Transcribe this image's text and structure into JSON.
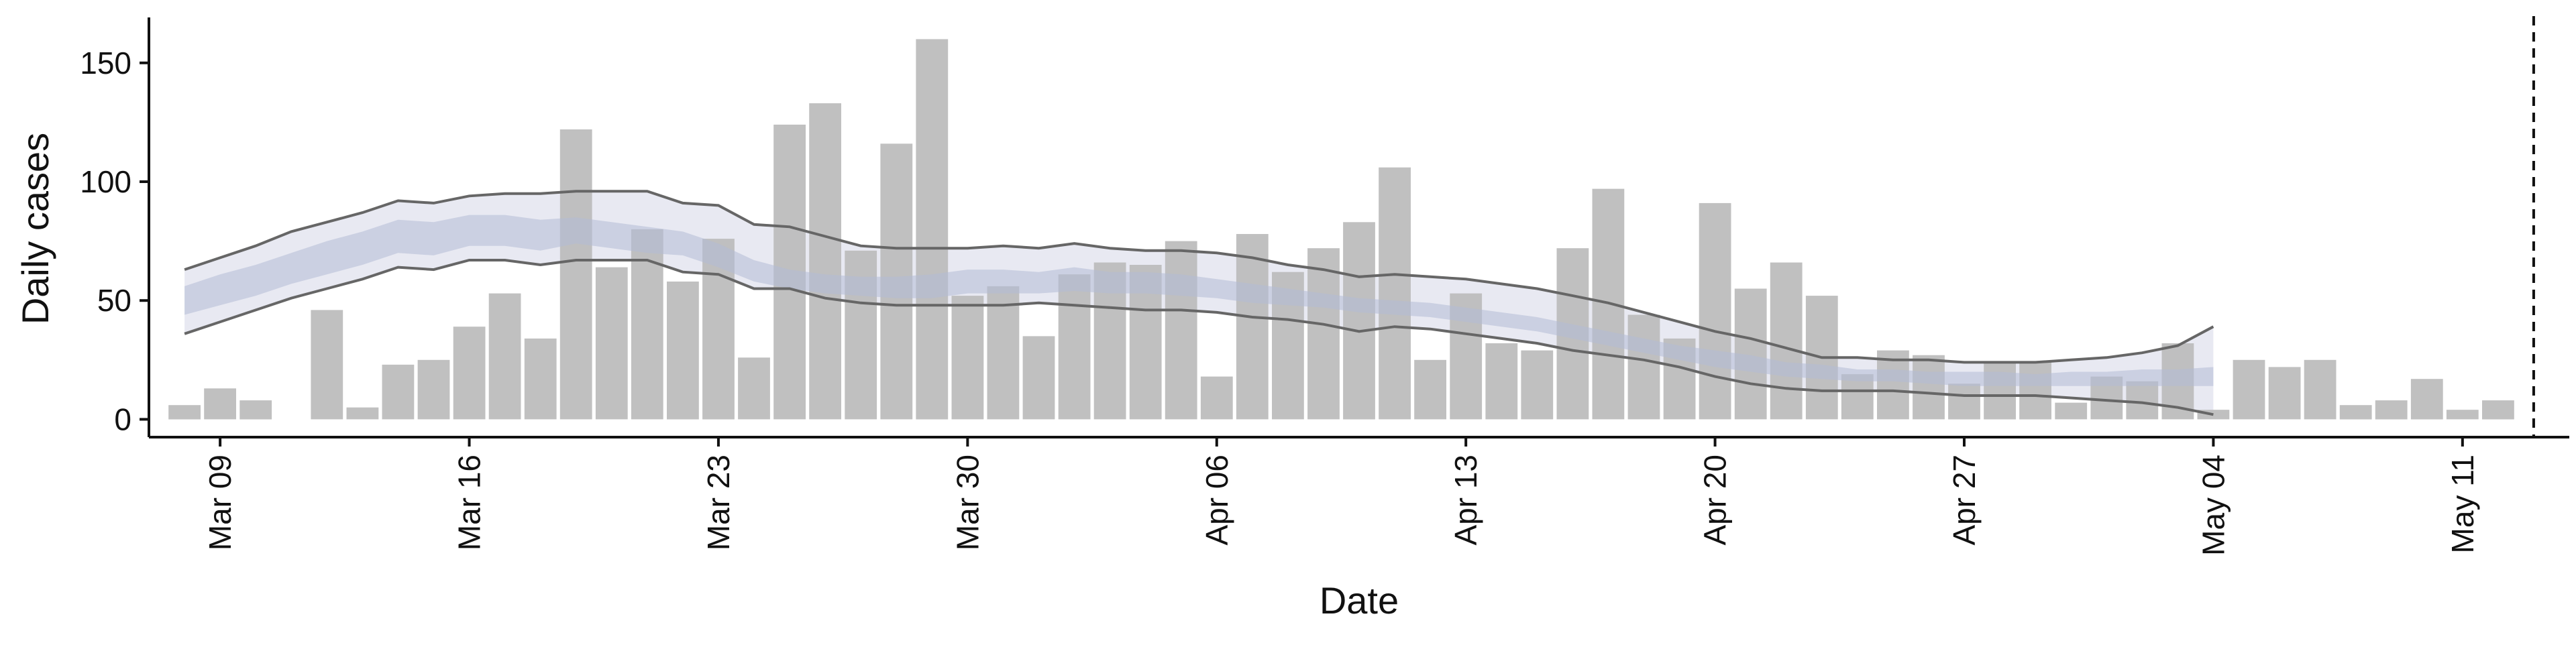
{
  "chart_data": {
    "type": "bar",
    "xlabel": "Date",
    "ylabel": "Daily cases",
    "ylim": [
      -7.5,
      168
    ],
    "y_ticks": [
      0,
      50,
      100,
      150
    ],
    "x_start": "2020-03-07",
    "x_end": "2020-05-14",
    "x_ticks": [
      {
        "date": "2020-03-09",
        "label": "Mar 09"
      },
      {
        "date": "2020-03-16",
        "label": "Mar 16"
      },
      {
        "date": "2020-03-23",
        "label": "Mar 23"
      },
      {
        "date": "2020-03-30",
        "label": "Mar 30"
      },
      {
        "date": "2020-04-06",
        "label": "Apr 06"
      },
      {
        "date": "2020-04-13",
        "label": "Apr 13"
      },
      {
        "date": "2020-04-20",
        "label": "Apr 20"
      },
      {
        "date": "2020-04-27",
        "label": "Apr 27"
      },
      {
        "date": "2020-05-04",
        "label": "May 04"
      },
      {
        "date": "2020-05-11",
        "label": "May 11"
      }
    ],
    "bar_dates": [
      "2020-03-08",
      "2020-03-09",
      "2020-03-10",
      "2020-03-11",
      "2020-03-12",
      "2020-03-13",
      "2020-03-14",
      "2020-03-15",
      "2020-03-16",
      "2020-03-17",
      "2020-03-18",
      "2020-03-19",
      "2020-03-20",
      "2020-03-21",
      "2020-03-22",
      "2020-03-23",
      "2020-03-24",
      "2020-03-25",
      "2020-03-26",
      "2020-03-27",
      "2020-03-28",
      "2020-03-29",
      "2020-03-30",
      "2020-03-31",
      "2020-04-01",
      "2020-04-02",
      "2020-04-03",
      "2020-04-04",
      "2020-04-05",
      "2020-04-06",
      "2020-04-07",
      "2020-04-08",
      "2020-04-09",
      "2020-04-10",
      "2020-04-11",
      "2020-04-12",
      "2020-04-13",
      "2020-04-14",
      "2020-04-15",
      "2020-04-16",
      "2020-04-17",
      "2020-04-18",
      "2020-04-19",
      "2020-04-20",
      "2020-04-21",
      "2020-04-22",
      "2020-04-23",
      "2020-04-24",
      "2020-04-25",
      "2020-04-26",
      "2020-04-27",
      "2020-04-28",
      "2020-04-29",
      "2020-04-30",
      "2020-05-01",
      "2020-05-02",
      "2020-05-03",
      "2020-05-04",
      "2020-05-05",
      "2020-05-06",
      "2020-05-07",
      "2020-05-08",
      "2020-05-09",
      "2020-05-10",
      "2020-05-11",
      "2020-05-12"
    ],
    "bar_values": [
      6,
      13,
      8,
      0,
      46,
      5,
      23,
      25,
      39,
      53,
      34,
      122,
      64,
      80,
      58,
      76,
      26,
      124,
      133,
      71,
      116,
      160,
      52,
      56,
      35,
      61,
      66,
      65,
      75,
      18,
      78,
      62,
      72,
      83,
      106,
      25,
      53,
      32,
      29,
      72,
      97,
      44,
      34,
      91,
      55,
      66,
      52,
      19,
      29,
      27,
      15,
      24,
      24,
      7,
      18,
      16,
      32,
      4,
      25,
      22,
      25,
      6,
      8,
      17,
      4,
      8
    ],
    "nowcast_dates": [
      "2020-03-08",
      "2020-03-09",
      "2020-03-10",
      "2020-03-11",
      "2020-03-12",
      "2020-03-13",
      "2020-03-14",
      "2020-03-15",
      "2020-03-16",
      "2020-03-17",
      "2020-03-18",
      "2020-03-19",
      "2020-03-20",
      "2020-03-21",
      "2020-03-22",
      "2020-03-23",
      "2020-03-24",
      "2020-03-25",
      "2020-03-26",
      "2020-03-27",
      "2020-03-28",
      "2020-03-29",
      "2020-03-30",
      "2020-03-31",
      "2020-04-01",
      "2020-04-02",
      "2020-04-03",
      "2020-04-04",
      "2020-04-05",
      "2020-04-06",
      "2020-04-07",
      "2020-04-08",
      "2020-04-09",
      "2020-04-10",
      "2020-04-11",
      "2020-04-12",
      "2020-04-13",
      "2020-04-14",
      "2020-04-15",
      "2020-04-16",
      "2020-04-17",
      "2020-04-18",
      "2020-04-19",
      "2020-04-20",
      "2020-04-21",
      "2020-04-22",
      "2020-04-23",
      "2020-04-24",
      "2020-04-25",
      "2020-04-26",
      "2020-04-27",
      "2020-04-28",
      "2020-04-29",
      "2020-04-30",
      "2020-05-01",
      "2020-05-02",
      "2020-05-03",
      "2020-05-04"
    ],
    "outer_upper": [
      63,
      68,
      73,
      79,
      83,
      87,
      92,
      91,
      94,
      95,
      95,
      96,
      96,
      96,
      91,
      90,
      82,
      81,
      77,
      73,
      72,
      72,
      72,
      73,
      72,
      74,
      72,
      71,
      71,
      70,
      68,
      65,
      63,
      60,
      61,
      60,
      59,
      57,
      55,
      52,
      49,
      45,
      41,
      37,
      34,
      30,
      26,
      26,
      25,
      25,
      24,
      24,
      24,
      25,
      26,
      28,
      31,
      39
    ],
    "outer_lower": [
      36,
      41,
      46,
      51,
      55,
      59,
      64,
      63,
      67,
      67,
      65,
      67,
      67,
      67,
      62,
      61,
      55,
      55,
      51,
      49,
      48,
      48,
      48,
      48,
      49,
      48,
      47,
      46,
      46,
      45,
      43,
      42,
      40,
      37,
      39,
      38,
      36,
      34,
      32,
      29,
      27,
      25,
      22,
      18,
      15,
      13,
      12,
      12,
      12,
      11,
      10,
      10,
      10,
      9,
      8,
      7,
      5,
      2
    ],
    "inner_upper": [
      56,
      61,
      65,
      70,
      75,
      79,
      84,
      83,
      86,
      86,
      84,
      85,
      83,
      81,
      79,
      74,
      67,
      63,
      61,
      60,
      60,
      61,
      63,
      63,
      62,
      64,
      62,
      62,
      61,
      59,
      57,
      55,
      53,
      51,
      50,
      49,
      47,
      45,
      43,
      40,
      37,
      34,
      31,
      29,
      27,
      24,
      23,
      21,
      21,
      20,
      20,
      20,
      19,
      20,
      20,
      21,
      21,
      22
    ],
    "inner_lower": [
      44,
      48,
      52,
      57,
      61,
      65,
      70,
      69,
      73,
      73,
      71,
      74,
      72,
      70,
      69,
      64,
      58,
      55,
      53,
      52,
      51,
      51,
      53,
      53,
      53,
      54,
      53,
      53,
      52,
      51,
      49,
      48,
      47,
      45,
      44,
      43,
      41,
      39,
      37,
      34,
      31,
      28,
      25,
      22,
      20,
      18,
      17,
      16,
      16,
      15,
      14,
      14,
      14,
      14,
      14,
      14,
      14,
      14
    ],
    "vline_date": "2020-05-13",
    "colors": {
      "bar": "#bdbdbd",
      "outer_band": "#e6e7f1",
      "inner_band": "#b3bcd6",
      "ci_line": "#666666",
      "axis": "#111111"
    },
    "grid": false,
    "legend": "none"
  }
}
